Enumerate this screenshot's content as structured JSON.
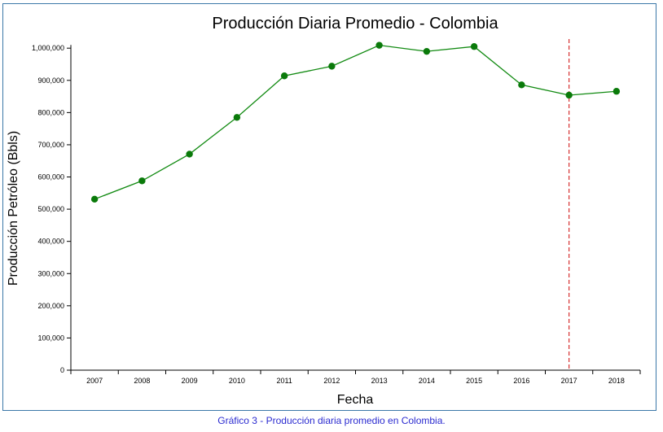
{
  "chart_data": {
    "type": "line",
    "title": "Producción Diaria Promedio - Colombia",
    "xlabel": "Fecha",
    "ylabel": "Producción Petróleo (Bbls)",
    "categories": [
      "2007",
      "2008",
      "2009",
      "2010",
      "2011",
      "2012",
      "2013",
      "2014",
      "2015",
      "2016",
      "2017",
      "2018"
    ],
    "series": [
      {
        "values": [
          531000,
          588000,
          671000,
          785000,
          914000,
          944000,
          1009000,
          990000,
          1005000,
          886000,
          854000,
          866000
        ]
      }
    ],
    "ylim": [
      0,
      1000000
    ],
    "yticks": [
      0,
      100000,
      200000,
      300000,
      400000,
      500000,
      600000,
      700000,
      800000,
      900000,
      1000000
    ],
    "ytick_labels": [
      "0",
      "100,000",
      "200,000",
      "300,000",
      "400,000",
      "500,000",
      "600,000",
      "700,000",
      "800,000",
      "900,000",
      "1,000,000"
    ],
    "grid": false,
    "marker_line_at": "2017",
    "colors": {
      "line": "#118a11",
      "marker": "#0a7a0a",
      "reference_line": "#d63030"
    }
  },
  "caption": "Gráfico 3 - Producción diaria promedio en Colombia."
}
